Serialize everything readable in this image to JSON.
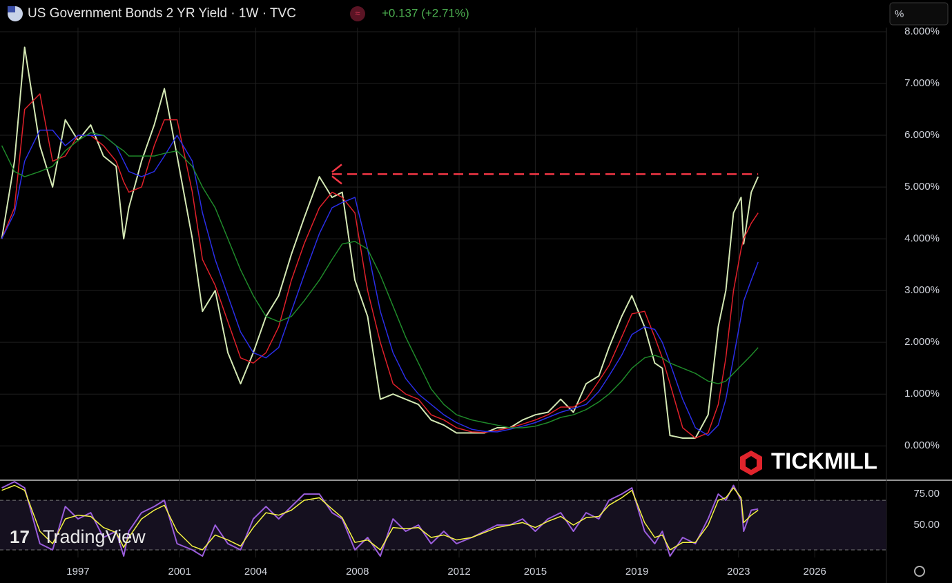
{
  "header": {
    "change": "+0.137 (+2.71%)",
    "unit_button": "%"
  },
  "watermarks": {
    "broker": "TICKMILL",
    "platform": "TradingView"
  },
  "chart_data": [
    {
      "type": "line",
      "title": "US Government Bonds 2 YR Yield · 1W · TVC",
      "x": [
        1994.0,
        1994.5,
        1994.9,
        1995.5,
        1996.0,
        1996.5,
        1997.0,
        1997.5,
        1998.0,
        1998.5,
        1998.8,
        1999.0,
        1999.5,
        2000.0,
        2000.4,
        2000.9,
        2001.5,
        2001.9,
        2002.4,
        2002.9,
        2003.4,
        2003.9,
        2004.4,
        2004.9,
        2005.4,
        2005.9,
        2006.5,
        2007.0,
        2007.4,
        2007.9,
        2008.4,
        2008.9,
        2009.4,
        2009.9,
        2010.4,
        2010.9,
        2011.4,
        2011.9,
        2012.5,
        2013.0,
        2013.5,
        2014.0,
        2014.5,
        2015.0,
        2015.5,
        2016.0,
        2016.5,
        2017.0,
        2017.5,
        2017.9,
        2018.4,
        2018.8,
        2019.3,
        2019.7,
        2020.0,
        2020.3,
        2020.8,
        2021.3,
        2021.8,
        2022.2,
        2022.5,
        2022.8,
        2023.1,
        2023.2,
        2023.5,
        2023.77
      ],
      "xlim": [
        1993.93,
        2028.82
      ],
      "xticks": [
        1997,
        2001,
        2004,
        2008,
        2012,
        2015,
        2019,
        2023,
        2026
      ],
      "ylim": [
        -0.65,
        8.08
      ],
      "yticks": [
        {
          "value": 0,
          "label": "0.000%"
        },
        {
          "value": 1,
          "label": "1.000%"
        },
        {
          "value": 2,
          "label": "2.000%"
        },
        {
          "value": 3,
          "label": "3.000%"
        },
        {
          "value": 4,
          "label": "4.000%"
        },
        {
          "value": 5,
          "label": "5.000%"
        },
        {
          "value": 6,
          "label": "6.000%"
        },
        {
          "value": 7,
          "label": "7.000%"
        },
        {
          "value": 8,
          "label": "8.000%"
        }
      ],
      "grid": true,
      "reference_line": {
        "value": 5.25,
        "from": 2007.0,
        "color": "#f23645"
      },
      "series": [
        {
          "color": "#d4e8b4",
          "values": [
            4.0,
            5.5,
            7.7,
            5.8,
            5.0,
            6.3,
            5.9,
            6.2,
            5.6,
            5.4,
            4.0,
            4.6,
            5.5,
            6.2,
            6.9,
            5.6,
            4.0,
            2.6,
            3.0,
            1.8,
            1.2,
            1.8,
            2.5,
            2.9,
            3.7,
            4.4,
            5.2,
            4.8,
            4.9,
            3.2,
            2.5,
            0.9,
            1.0,
            0.9,
            0.8,
            0.5,
            0.4,
            0.25,
            0.25,
            0.25,
            0.35,
            0.35,
            0.5,
            0.6,
            0.65,
            0.9,
            0.65,
            1.2,
            1.35,
            1.9,
            2.5,
            2.9,
            2.3,
            1.6,
            1.5,
            0.2,
            0.15,
            0.15,
            0.6,
            2.3,
            3.0,
            4.5,
            4.8,
            3.9,
            4.9,
            5.2
          ]
        },
        {
          "color": "#e0202a",
          "values": [
            4.0,
            4.6,
            6.5,
            6.8,
            5.5,
            5.6,
            6.0,
            6.0,
            5.8,
            5.5,
            5.1,
            4.9,
            5.0,
            5.8,
            6.3,
            6.3,
            4.9,
            3.6,
            3.1,
            2.4,
            1.7,
            1.6,
            1.8,
            2.3,
            3.2,
            3.9,
            4.6,
            4.9,
            4.8,
            4.5,
            3.0,
            2.0,
            1.2,
            1.0,
            0.9,
            0.6,
            0.5,
            0.35,
            0.27,
            0.26,
            0.3,
            0.35,
            0.42,
            0.5,
            0.6,
            0.75,
            0.75,
            0.9,
            1.25,
            1.55,
            2.1,
            2.55,
            2.6,
            2.1,
            1.7,
            1.2,
            0.35,
            0.15,
            0.25,
            0.8,
            1.7,
            3.0,
            3.8,
            4.0,
            4.3,
            4.5
          ]
        },
        {
          "color": "#2a2ee8",
          "values": [
            4.0,
            4.5,
            5.5,
            6.1,
            6.1,
            5.8,
            6.0,
            6.0,
            6.0,
            5.8,
            5.5,
            5.3,
            5.2,
            5.3,
            5.6,
            6.0,
            5.5,
            4.5,
            3.6,
            2.9,
            2.2,
            1.8,
            1.7,
            1.9,
            2.6,
            3.3,
            4.1,
            4.6,
            4.7,
            4.8,
            3.8,
            2.6,
            1.8,
            1.3,
            1.0,
            0.8,
            0.6,
            0.45,
            0.32,
            0.28,
            0.27,
            0.32,
            0.38,
            0.45,
            0.55,
            0.65,
            0.72,
            0.8,
            1.05,
            1.35,
            1.75,
            2.15,
            2.3,
            2.25,
            2.0,
            1.6,
            0.9,
            0.35,
            0.2,
            0.4,
            0.9,
            1.7,
            2.5,
            2.8,
            3.2,
            3.55
          ]
        },
        {
          "color": "#1f8a2a",
          "values": [
            5.8,
            5.3,
            5.2,
            5.3,
            5.4,
            5.7,
            5.9,
            6.05,
            6.0,
            5.8,
            5.7,
            5.6,
            5.6,
            5.6,
            5.65,
            5.7,
            5.4,
            5.0,
            4.6,
            4.0,
            3.4,
            2.9,
            2.5,
            2.4,
            2.5,
            2.8,
            3.2,
            3.6,
            3.9,
            3.95,
            3.8,
            3.3,
            2.7,
            2.1,
            1.6,
            1.1,
            0.8,
            0.6,
            0.5,
            0.45,
            0.4,
            0.35,
            0.35,
            0.38,
            0.45,
            0.55,
            0.6,
            0.7,
            0.85,
            1.0,
            1.25,
            1.5,
            1.7,
            1.75,
            1.7,
            1.6,
            1.5,
            1.4,
            1.25,
            1.2,
            1.25,
            1.4,
            1.55,
            1.6,
            1.75,
            1.9
          ]
        }
      ]
    },
    {
      "type": "line",
      "x": [
        1994.0,
        1994.5,
        1994.9,
        1995.5,
        1996.0,
        1996.5,
        1997.0,
        1997.5,
        1998.0,
        1998.5,
        1998.8,
        1999.0,
        1999.5,
        2000.0,
        2000.4,
        2000.9,
        2001.5,
        2001.9,
        2002.4,
        2002.9,
        2003.4,
        2003.9,
        2004.4,
        2004.9,
        2005.4,
        2005.9,
        2006.5,
        2007.0,
        2007.4,
        2007.9,
        2008.4,
        2008.9,
        2009.4,
        2009.9,
        2010.4,
        2010.9,
        2011.4,
        2011.9,
        2012.5,
        2013.0,
        2013.5,
        2014.0,
        2014.5,
        2015.0,
        2015.5,
        2016.0,
        2016.5,
        2017.0,
        2017.5,
        2017.9,
        2018.4,
        2018.8,
        2019.3,
        2019.7,
        2020.0,
        2020.3,
        2020.8,
        2021.3,
        2021.8,
        2022.2,
        2022.5,
        2022.8,
        2023.1,
        2023.2,
        2023.5,
        2023.77
      ],
      "xlim": [
        1993.93,
        2028.82
      ],
      "ylim": [
        23.9,
        85.6
      ],
      "yticks": [
        {
          "value": 50,
          "label": "50.00"
        },
        {
          "value": 75,
          "label": "75.00"
        }
      ],
      "bands": [
        30,
        70
      ],
      "series": [
        {
          "color": "#9a5ddb",
          "values": [
            80,
            85,
            80,
            35,
            30,
            65,
            55,
            60,
            40,
            45,
            25,
            45,
            60,
            65,
            70,
            35,
            30,
            25,
            50,
            35,
            30,
            55,
            65,
            55,
            65,
            75,
            75,
            60,
            55,
            30,
            40,
            25,
            55,
            45,
            50,
            35,
            45,
            35,
            40,
            45,
            50,
            50,
            55,
            45,
            55,
            60,
            45,
            60,
            55,
            70,
            75,
            80,
            45,
            35,
            45,
            25,
            40,
            35,
            55,
            75,
            70,
            82,
            70,
            45,
            62,
            63
          ]
        },
        {
          "color": "#f5f542",
          "values": [
            78,
            82,
            78,
            45,
            35,
            55,
            58,
            57,
            48,
            44,
            32,
            40,
            55,
            62,
            66,
            45,
            33,
            30,
            42,
            38,
            33,
            48,
            60,
            58,
            62,
            70,
            72,
            63,
            56,
            36,
            38,
            30,
            48,
            47,
            48,
            40,
            42,
            38,
            40,
            44,
            48,
            50,
            52,
            48,
            53,
            57,
            50,
            56,
            57,
            66,
            72,
            78,
            52,
            40,
            42,
            30,
            36,
            36,
            50,
            70,
            72,
            80,
            72,
            52,
            58,
            62
          ]
        }
      ]
    }
  ]
}
